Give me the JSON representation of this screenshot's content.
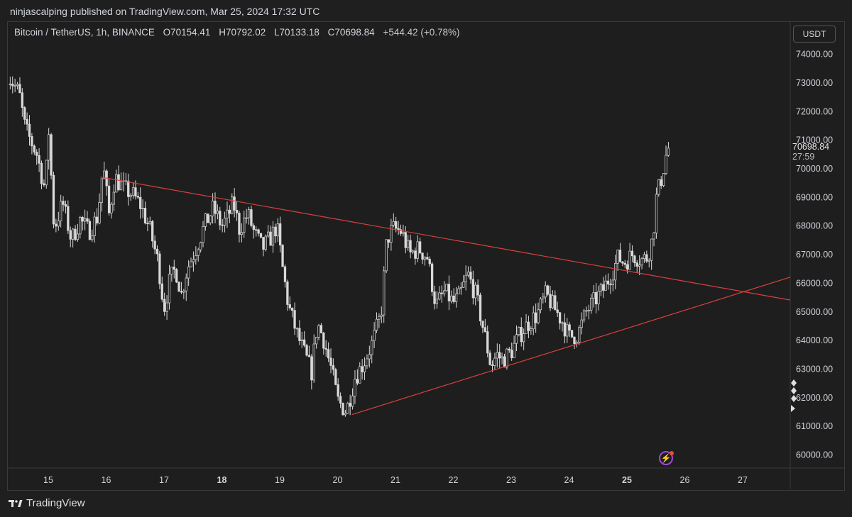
{
  "header": {
    "published_by": "ninjascalping published on TradingView.com, Mar 25, 2024 17:32 UTC"
  },
  "symbol_bar": {
    "name": "Bitcoin / TetherUS, 1h, BINANCE",
    "open_label": "O",
    "open": "70154.41",
    "high_label": "H",
    "high": "70792.02",
    "low_label": "L",
    "low": "70133.18",
    "close_label": "C",
    "close": "70698.84",
    "change": "+544.42 (+0.78%)"
  },
  "currency_button": "USDT",
  "last_price": {
    "price": "70698.84",
    "countdown": "27:59"
  },
  "footer": {
    "brand": "TradingView"
  },
  "colors": {
    "background": "#1e1e1e",
    "candle": "#d9d9d9",
    "trendline": "#d9413f",
    "grid": "#333333"
  },
  "chart_data": {
    "type": "candlestick",
    "interval": "1h",
    "ylim": [
      59500,
      74600
    ],
    "y_ticks": [
      "60000.00",
      "61000.00",
      "62000.00",
      "63000.00",
      "64000.00",
      "65000.00",
      "66000.00",
      "67000.00",
      "68000.00",
      "69000.00",
      "70000.00",
      "71000.00",
      "72000.00",
      "73000.00",
      "74000.00"
    ],
    "x_ticks": [
      {
        "label": "15",
        "day": 15,
        "bold": false
      },
      {
        "label": "16",
        "day": 16,
        "bold": false
      },
      {
        "label": "17",
        "day": 17,
        "bold": false
      },
      {
        "label": "18",
        "day": 18,
        "bold": true
      },
      {
        "label": "19",
        "day": 19,
        "bold": false
      },
      {
        "label": "20",
        "day": 20,
        "bold": false
      },
      {
        "label": "21",
        "day": 21,
        "bold": false
      },
      {
        "label": "22",
        "day": 22,
        "bold": false
      },
      {
        "label": "23",
        "day": 23,
        "bold": false
      },
      {
        "label": "24",
        "day": 24,
        "bold": false
      },
      {
        "label": "25",
        "day": 25,
        "bold": true
      },
      {
        "label": "26",
        "day": 26,
        "bold": false
      },
      {
        "label": "27",
        "day": 27,
        "bold": false
      }
    ],
    "xlim": [
      14.3,
      27.9
    ],
    "path": [
      [
        14.3,
        73300
      ],
      [
        14.5,
        72600
      ],
      [
        14.6,
        71400
      ],
      [
        14.8,
        70500
      ],
      [
        14.95,
        69200
      ],
      [
        15.0,
        71600
      ],
      [
        15.1,
        67900
      ],
      [
        15.25,
        68800
      ],
      [
        15.4,
        67500
      ],
      [
        15.55,
        68200
      ],
      [
        15.7,
        67800
      ],
      [
        15.85,
        68300
      ],
      [
        15.95,
        70100
      ],
      [
        16.05,
        68400
      ],
      [
        16.15,
        69700
      ],
      [
        16.3,
        69300
      ],
      [
        16.45,
        69100
      ],
      [
        16.6,
        68700
      ],
      [
        16.75,
        67900
      ],
      [
        16.9,
        66700
      ],
      [
        17.0,
        65100
      ],
      [
        17.1,
        66100
      ],
      [
        17.2,
        66500
      ],
      [
        17.3,
        65600
      ],
      [
        17.4,
        66500
      ],
      [
        17.55,
        67200
      ],
      [
        17.7,
        68000
      ],
      [
        17.85,
        68600
      ],
      [
        18.0,
        68000
      ],
      [
        18.1,
        68300
      ],
      [
        18.2,
        68800
      ],
      [
        18.3,
        67900
      ],
      [
        18.45,
        68400
      ],
      [
        18.55,
        67800
      ],
      [
        18.7,
        67200
      ],
      [
        18.85,
        67600
      ],
      [
        18.95,
        68000
      ],
      [
        19.05,
        66500
      ],
      [
        19.15,
        65200
      ],
      [
        19.3,
        64200
      ],
      [
        19.45,
        63400
      ],
      [
        19.55,
        62900
      ],
      [
        19.65,
        64600
      ],
      [
        19.75,
        64100
      ],
      [
        19.9,
        62900
      ],
      [
        20.0,
        61900
      ],
      [
        20.15,
        61500
      ],
      [
        20.3,
        62700
      ],
      [
        20.45,
        63200
      ],
      [
        20.6,
        63900
      ],
      [
        20.75,
        64900
      ],
      [
        20.85,
        67500
      ],
      [
        20.95,
        67900
      ],
      [
        21.1,
        67800
      ],
      [
        21.25,
        67000
      ],
      [
        21.4,
        67200
      ],
      [
        21.55,
        66900
      ],
      [
        21.7,
        65200
      ],
      [
        21.85,
        65700
      ],
      [
        22.0,
        65300
      ],
      [
        22.1,
        65500
      ],
      [
        22.25,
        66300
      ],
      [
        22.4,
        65500
      ],
      [
        22.55,
        64100
      ],
      [
        22.65,
        63100
      ],
      [
        22.75,
        63500
      ],
      [
        22.85,
        63300
      ],
      [
        23.0,
        63600
      ],
      [
        23.15,
        64200
      ],
      [
        23.3,
        64600
      ],
      [
        23.45,
        64900
      ],
      [
        23.6,
        65600
      ],
      [
        23.75,
        65100
      ],
      [
        23.9,
        64600
      ],
      [
        24.0,
        64100
      ],
      [
        24.15,
        64200
      ],
      [
        24.3,
        65000
      ],
      [
        24.45,
        65400
      ],
      [
        24.6,
        65800
      ],
      [
        24.75,
        66400
      ],
      [
        24.85,
        66900
      ],
      [
        24.95,
        66700
      ],
      [
        25.1,
        67000
      ],
      [
        25.25,
        66800
      ],
      [
        25.35,
        66900
      ],
      [
        25.45,
        67600
      ],
      [
        25.5,
        68900
      ],
      [
        25.6,
        69700
      ],
      [
        25.7,
        70698
      ]
    ],
    "trendlines": [
      {
        "name": "upper",
        "x1": 15.9,
        "y1": 69700,
        "x2": 28.1,
        "y2": 65400
      },
      {
        "name": "lower",
        "x1": 20.25,
        "y1": 61400,
        "x2": 28.1,
        "y2": 66200
      }
    ]
  }
}
